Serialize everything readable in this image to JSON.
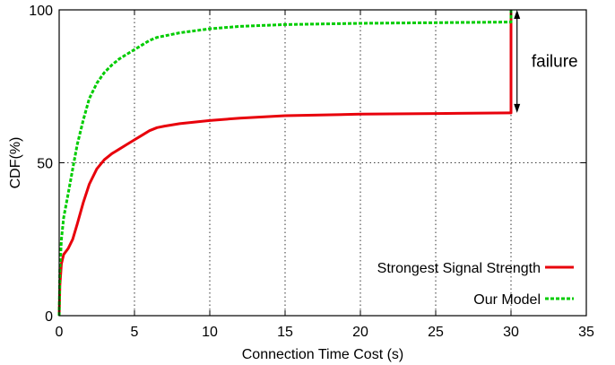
{
  "chart_data": {
    "type": "line",
    "title": "",
    "xlabel": "Connection Time Cost (s)",
    "ylabel": "CDF(%)",
    "xlim": [
      0,
      35
    ],
    "ylim": [
      0,
      100
    ],
    "xticks": [
      0,
      5,
      10,
      15,
      20,
      25,
      30,
      35
    ],
    "yticks": [
      0,
      50,
      100
    ],
    "grid": true,
    "legend_position": "bottom-right",
    "series": [
      {
        "name": "Strongest Signal Strength",
        "color": "#e8000b",
        "style": "solid",
        "points": [
          [
            0,
            0
          ],
          [
            0.05,
            10
          ],
          [
            0.15,
            17
          ],
          [
            0.3,
            20
          ],
          [
            0.6,
            22
          ],
          [
            0.9,
            25
          ],
          [
            1.2,
            30
          ],
          [
            1.6,
            37
          ],
          [
            2.0,
            43
          ],
          [
            2.5,
            48
          ],
          [
            3.0,
            51
          ],
          [
            3.5,
            53
          ],
          [
            4.0,
            54.5
          ],
          [
            4.5,
            56
          ],
          [
            5.0,
            57.5
          ],
          [
            5.5,
            59
          ],
          [
            6.0,
            60.5
          ],
          [
            6.5,
            61.5
          ],
          [
            7.0,
            62
          ],
          [
            8.0,
            62.8
          ],
          [
            10.0,
            63.8
          ],
          [
            12.0,
            64.6
          ],
          [
            15.0,
            65.4
          ],
          [
            20.0,
            65.9
          ],
          [
            25.0,
            66.1
          ],
          [
            29.9,
            66.3
          ],
          [
            30.0,
            66.3
          ],
          [
            30.0,
            100
          ]
        ]
      },
      {
        "name": "Our Model",
        "color": "#00cc00",
        "style": "dashed",
        "points": [
          [
            0,
            0
          ],
          [
            0.05,
            15
          ],
          [
            0.15,
            25
          ],
          [
            0.3,
            32
          ],
          [
            0.6,
            40
          ],
          [
            0.9,
            48
          ],
          [
            1.2,
            56
          ],
          [
            1.6,
            64
          ],
          [
            2.0,
            71
          ],
          [
            2.5,
            76
          ],
          [
            3.0,
            79.5
          ],
          [
            3.5,
            82
          ],
          [
            4.0,
            84
          ],
          [
            4.5,
            85.5
          ],
          [
            5.0,
            87
          ],
          [
            5.5,
            88.5
          ],
          [
            6.0,
            90
          ],
          [
            6.5,
            91
          ],
          [
            7.0,
            91.5
          ],
          [
            8.0,
            92.5
          ],
          [
            10.0,
            93.8
          ],
          [
            12.0,
            94.6
          ],
          [
            15.0,
            95.2
          ],
          [
            20.0,
            95.6
          ],
          [
            25.0,
            95.8
          ],
          [
            29.9,
            96
          ],
          [
            30.0,
            96
          ],
          [
            30.0,
            100
          ]
        ]
      }
    ],
    "annotations": [
      {
        "text": "failure",
        "x_start": 30.4,
        "y_from": 66.3,
        "y_to": 100
      }
    ]
  }
}
